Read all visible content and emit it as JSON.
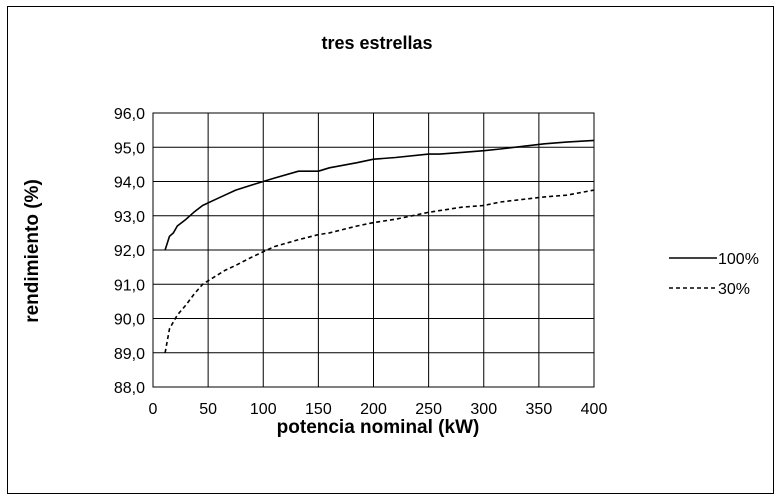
{
  "chart_data": {
    "type": "line",
    "title": "tres estrellas",
    "xlabel": "potencia nominal (kW)",
    "ylabel": "rendimiento (%)",
    "xlim": [
      0,
      400
    ],
    "ylim": [
      88.0,
      96.0
    ],
    "x_ticks": [
      "0",
      "50",
      "100",
      "150",
      "200",
      "250",
      "300",
      "350",
      "400"
    ],
    "y_ticks": [
      "88,0",
      "89,0",
      "90,0",
      "91,0",
      "92,0",
      "93,0",
      "94,0",
      "95,0",
      "96,0"
    ],
    "grid": true,
    "legend_position": "right",
    "series": [
      {
        "name": "100%",
        "style": "solid",
        "color": "#000000",
        "x": [
          11,
          15,
          18.5,
          22,
          30,
          37,
          45,
          55,
          65,
          75,
          90,
          110,
          132,
          150,
          160,
          185,
          200,
          220,
          250,
          260,
          280,
          300,
          315,
          355,
          375,
          400
        ],
        "y": [
          92.0,
          92.4,
          92.5,
          92.7,
          92.9,
          93.1,
          93.3,
          93.45,
          93.6,
          93.75,
          93.9,
          94.1,
          94.3,
          94.3,
          94.4,
          94.55,
          94.65,
          94.7,
          94.8,
          94.8,
          94.85,
          94.9,
          94.95,
          95.1,
          95.15,
          95.2
        ]
      },
      {
        "name": "30%",
        "style": "dashed",
        "color": "#000000",
        "x": [
          11,
          15,
          18.5,
          22,
          30,
          37,
          45,
          55,
          65,
          75,
          90,
          110,
          132,
          150,
          160,
          185,
          200,
          220,
          250,
          260,
          280,
          300,
          315,
          355,
          375,
          400
        ],
        "y": [
          89.0,
          89.7,
          89.9,
          90.1,
          90.4,
          90.7,
          91.0,
          91.2,
          91.4,
          91.55,
          91.8,
          92.1,
          92.3,
          92.45,
          92.5,
          92.7,
          92.8,
          92.9,
          93.1,
          93.15,
          93.25,
          93.3,
          93.4,
          93.55,
          93.6,
          93.75
        ]
      }
    ]
  }
}
